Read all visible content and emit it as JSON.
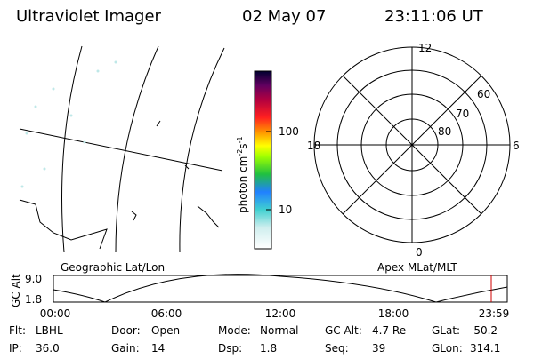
{
  "header": {
    "instrument": "Ultraviolet Imager",
    "date": "02 May 07",
    "time": "23:11:06 UT"
  },
  "colorbar": {
    "label": "photon cm",
    "exp1": "-2",
    "unit2": "s",
    "exp2": "-1",
    "ticks": [
      "100",
      "10"
    ]
  },
  "polar": {
    "mlt_labels": [
      "12",
      "18",
      "6",
      "0"
    ],
    "lat_labels": [
      "60",
      "70",
      "80"
    ]
  },
  "map_label": "Geographic Lat/Lon",
  "polar_label": "Apex MLat/MLT",
  "altitude": {
    "ylabel": "GC Alt",
    "yticks": [
      "9.0",
      "1.8"
    ],
    "xticks": [
      "00:00",
      "06:00",
      "12:00",
      "18:00",
      "23:59"
    ]
  },
  "footer": {
    "rows": [
      [
        [
          "Flt:",
          "LBHL"
        ],
        [
          "Door:",
          "Open"
        ],
        [
          "Mode:",
          "Normal"
        ],
        [
          "GC Alt:",
          "4.7 Re"
        ],
        [
          "GLat:",
          "-50.2"
        ]
      ],
      [
        [
          "IP:",
          "36.0"
        ],
        [
          "Gain:",
          "14"
        ],
        [
          "Dsp:",
          "1.8"
        ],
        [
          "Seq:",
          "39"
        ],
        [
          "GLon:",
          "314.1"
        ]
      ]
    ]
  }
}
